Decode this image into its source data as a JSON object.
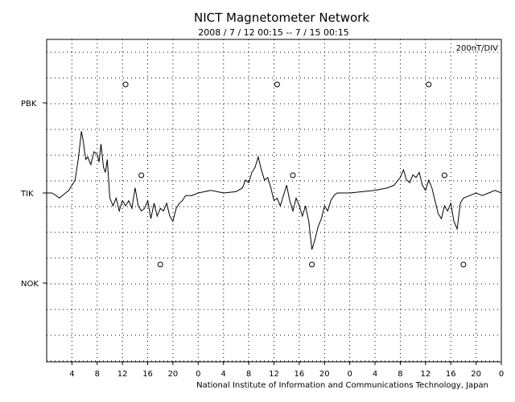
{
  "chart_data": {
    "type": "line",
    "title": "NICT Magnetometer Network",
    "subtitle": "2008 / 7 / 12  00:15 -- 7 / 15  00:15",
    "scale_label": "200nT/DIV",
    "credit": "National Institute of Information and Communications Technology, Japan",
    "xlim_hours": [
      0,
      72
    ],
    "x_tick_labels": [
      "4",
      "8",
      "12",
      "16",
      "20",
      "0",
      "4",
      "8",
      "12",
      "16",
      "20",
      "0",
      "4",
      "8",
      "12",
      "16",
      "20",
      "0"
    ],
    "grid": true,
    "stations": [
      "PBK",
      "TIK",
      "NOK"
    ],
    "series": [
      {
        "name": "TIK",
        "x": [
          0,
          0.8,
          1.5,
          2,
          2.5,
          3,
          3.5,
          4,
          4.5,
          5,
          5.5,
          5.8,
          6,
          6.2,
          6.5,
          7,
          7.5,
          8,
          8.3,
          8.6,
          9,
          9.3,
          9.6,
          10,
          10.5,
          11,
          11.5,
          12,
          12.5,
          13,
          13.5,
          14,
          14.5,
          15,
          15.5,
          16,
          16.5,
          17,
          17.5,
          18,
          18.5,
          19,
          19.5,
          20,
          20.5,
          21,
          21.5,
          22,
          23,
          24,
          26,
          28,
          30,
          31,
          31.5,
          32,
          32.5,
          33,
          33.5,
          34,
          34.5,
          35,
          35.5,
          36,
          36.5,
          37,
          37.5,
          38,
          38.5,
          39,
          39.5,
          40,
          40.5,
          41,
          41.5,
          42,
          42.5,
          43,
          43.5,
          44,
          44.5,
          45,
          45.5,
          46,
          48,
          50,
          52,
          54,
          55,
          56,
          56.5,
          57,
          57.5,
          58,
          58.5,
          59,
          59.5,
          60,
          60.5,
          61,
          61.5,
          62,
          62.5,
          63,
          63.5,
          64,
          64.5,
          65,
          65.5,
          66,
          67,
          68,
          69,
          70,
          71,
          72
        ],
        "values": [
          0,
          0,
          -0.1,
          -0.2,
          -0.1,
          0,
          0.1,
          0.3,
          0.5,
          1.3,
          2.4,
          2.0,
          1.6,
          1.3,
          1.4,
          1.1,
          1.6,
          1.5,
          1.2,
          1.9,
          1.0,
          0.8,
          1.3,
          -0.2,
          -0.5,
          -0.2,
          -0.7,
          -0.3,
          -0.5,
          -0.3,
          -0.6,
          0.2,
          -0.5,
          -0.7,
          -0.6,
          -0.3,
          -1.0,
          -0.4,
          -0.9,
          -0.6,
          -0.7,
          -0.4,
          -0.9,
          -1.1,
          -0.6,
          -0.4,
          -0.3,
          -0.1,
          -0.1,
          0,
          0.1,
          0,
          0.05,
          0.2,
          0.5,
          0.4,
          0.8,
          1.0,
          1.4,
          0.9,
          0.5,
          0.6,
          0.2,
          -0.3,
          -0.2,
          -0.5,
          -0.1,
          0.3,
          -0.3,
          -0.7,
          -0.2,
          -0.5,
          -0.9,
          -0.5,
          -1.1,
          -2.2,
          -1.8,
          -1.3,
          -1.0,
          -0.5,
          -0.7,
          -0.3,
          -0.1,
          0,
          0,
          0.05,
          0.1,
          0.2,
          0.3,
          0.6,
          0.9,
          0.5,
          0.4,
          0.7,
          0.6,
          0.8,
          0.3,
          0.1,
          0.5,
          0.2,
          -0.3,
          -0.8,
          -1.0,
          -0.5,
          -0.7,
          -0.4,
          -1.1,
          -1.4,
          -0.4,
          -0.2,
          -0.1,
          0,
          -0.1,
          0,
          0.1,
          0
        ],
        "offset_div": 0
      }
    ],
    "reference_markers": [
      {
        "station": "PBK",
        "x": [
          12.5,
          36.5,
          60.5
        ]
      },
      {
        "station": "TIK",
        "x": [
          15,
          39,
          63
        ]
      },
      {
        "station": "NOK",
        "x": [
          18,
          42,
          66
        ]
      }
    ]
  }
}
